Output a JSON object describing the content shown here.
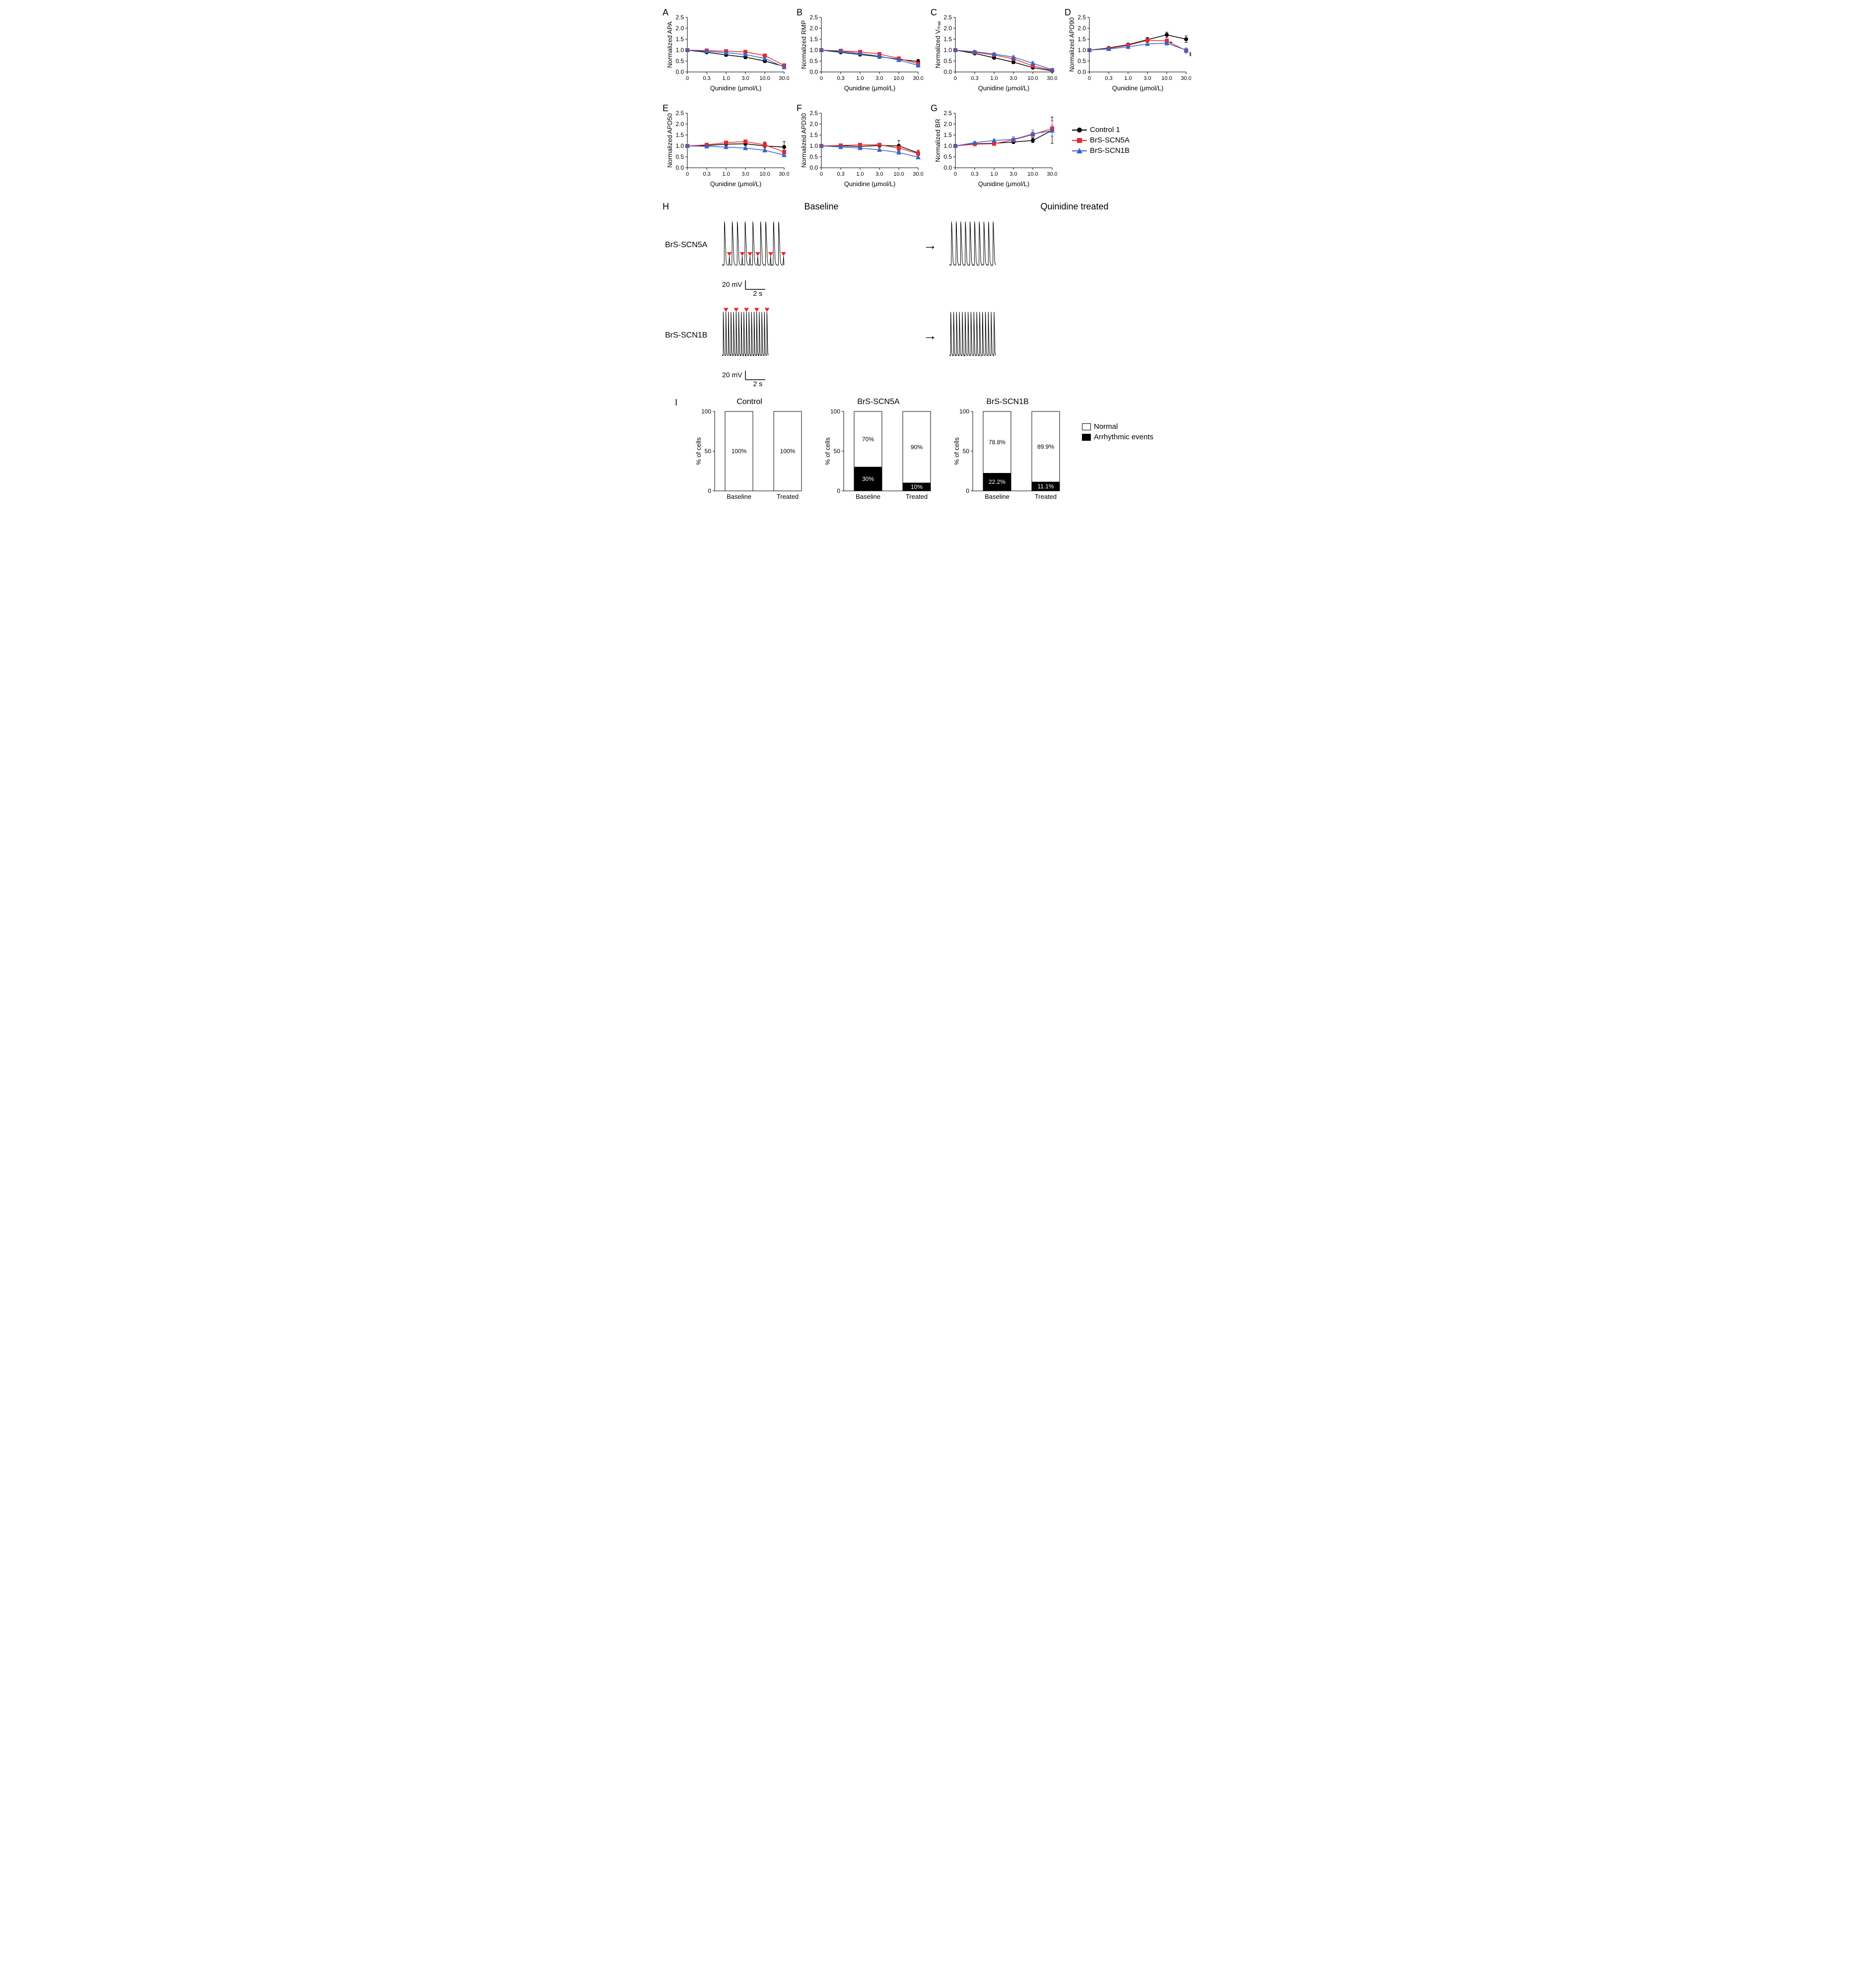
{
  "x_labels": [
    "0",
    "0.3",
    "1.0",
    "3.0",
    "10.0",
    "30.0"
  ],
  "x_axis_title": "Qunidine (μmol/L)",
  "ylim": [
    0,
    2.5
  ],
  "ytick_step": 0.5,
  "series_names": [
    "Control 1",
    "BrS-SCN5A",
    "BrS-SCN1B"
  ],
  "series_colors": [
    "#000000",
    "#e8282b",
    "#3366cc"
  ],
  "series_markers": [
    "circle",
    "square",
    "triangle"
  ],
  "panels": [
    {
      "id": "A",
      "ylabel": "Normalized APA",
      "series": [
        {
          "y": [
            1.0,
            0.9,
            0.78,
            0.68,
            0.5,
            0.25
          ],
          "err": [
            0,
            0.05,
            0.06,
            0.08,
            0.07,
            0.05
          ]
        },
        {
          "y": [
            1.0,
            0.98,
            0.95,
            0.92,
            0.75,
            0.3
          ],
          "err": [
            0,
            0.04,
            0.05,
            0.05,
            0.06,
            0.06
          ]
        },
        {
          "y": [
            1.0,
            0.95,
            0.88,
            0.8,
            0.62,
            0.22
          ],
          "err": [
            0,
            0.04,
            0.05,
            0.06,
            0.07,
            0.05
          ]
        }
      ]
    },
    {
      "id": "B",
      "ylabel": "Normalized RMP",
      "series": [
        {
          "y": [
            1.0,
            0.9,
            0.8,
            0.7,
            0.58,
            0.48
          ],
          "err": [
            0,
            0.05,
            0.07,
            0.08,
            0.09,
            0.1
          ]
        },
        {
          "y": [
            1.0,
            0.97,
            0.92,
            0.82,
            0.62,
            0.38
          ],
          "err": [
            0,
            0.03,
            0.04,
            0.05,
            0.07,
            0.08
          ]
        },
        {
          "y": [
            1.0,
            0.95,
            0.85,
            0.72,
            0.55,
            0.3
          ],
          "err": [
            0,
            0.04,
            0.05,
            0.06,
            0.08,
            0.08
          ]
        }
      ]
    },
    {
      "id": "C",
      "ylabel": "Normalized Vₘₐₓ",
      "series": [
        {
          "y": [
            1.0,
            0.85,
            0.65,
            0.45,
            0.2,
            0.05
          ],
          "err": [
            0,
            0.05,
            0.06,
            0.07,
            0.06,
            0.04
          ]
        },
        {
          "y": [
            1.0,
            0.9,
            0.78,
            0.6,
            0.28,
            0.08
          ],
          "err": [
            0,
            0.04,
            0.05,
            0.06,
            0.06,
            0.04
          ]
        },
        {
          "y": [
            1.0,
            0.93,
            0.82,
            0.68,
            0.4,
            0.1
          ],
          "err": [
            0,
            0.04,
            0.05,
            0.06,
            0.08,
            0.05
          ]
        }
      ]
    },
    {
      "id": "D",
      "ylabel": "Normalized APD90",
      "series": [
        {
          "y": [
            1.0,
            1.1,
            1.25,
            1.48,
            1.7,
            1.5
          ],
          "err": [
            0,
            0.05,
            0.06,
            0.1,
            0.12,
            0.15
          ]
        },
        {
          "y": [
            1.0,
            1.08,
            1.22,
            1.45,
            1.42,
            0.98
          ],
          "err": [
            0,
            0.04,
            0.05,
            0.08,
            0.1,
            0.12
          ]
        },
        {
          "y": [
            1.0,
            1.05,
            1.15,
            1.28,
            1.32,
            1.0
          ],
          "err": [
            0,
            0.04,
            0.05,
            0.07,
            0.09,
            0.1
          ]
        }
      ],
      "sig_markers": [
        {
          "x": 4,
          "y": 1.28
        },
        {
          "x": 5,
          "y": 0.8
        },
        {
          "x": 5,
          "y": 0.7
        }
      ]
    },
    {
      "id": "E",
      "ylabel": "Normalized APD50",
      "series": [
        {
          "y": [
            1.0,
            1.02,
            1.08,
            1.1,
            1.0,
            0.95
          ],
          "err": [
            0,
            0.05,
            0.07,
            0.08,
            0.18,
            0.25
          ]
        },
        {
          "y": [
            1.0,
            1.05,
            1.15,
            1.2,
            1.05,
            0.72
          ],
          "err": [
            0,
            0.04,
            0.05,
            0.06,
            0.1,
            0.1
          ]
        },
        {
          "y": [
            1.0,
            0.98,
            0.95,
            0.9,
            0.8,
            0.58
          ],
          "err": [
            0,
            0.04,
            0.05,
            0.06,
            0.08,
            0.08
          ]
        }
      ]
    },
    {
      "id": "F",
      "ylabel": "Normalized APD30",
      "series": [
        {
          "y": [
            1.0,
            1.0,
            0.98,
            1.02,
            1.0,
            0.68
          ],
          "err": [
            0,
            0.05,
            0.06,
            0.08,
            0.25,
            0.12
          ]
        },
        {
          "y": [
            1.0,
            1.02,
            1.05,
            1.05,
            0.9,
            0.65
          ],
          "err": [
            0,
            0.04,
            0.05,
            0.06,
            0.1,
            0.1
          ]
        },
        {
          "y": [
            1.0,
            0.95,
            0.9,
            0.82,
            0.7,
            0.48
          ],
          "err": [
            0,
            0.04,
            0.05,
            0.06,
            0.08,
            0.08
          ]
        }
      ]
    },
    {
      "id": "G",
      "ylabel": "Normalized BR",
      "series": [
        {
          "y": [
            1.0,
            1.1,
            1.12,
            1.18,
            1.25,
            1.72
          ],
          "err": [
            0,
            0.05,
            0.06,
            0.07,
            0.1,
            0.6
          ]
        },
        {
          "y": [
            1.0,
            1.08,
            1.1,
            1.28,
            1.52,
            1.8
          ],
          "err": [
            0,
            0.04,
            0.05,
            0.08,
            0.12,
            0.35
          ]
        },
        {
          "y": [
            1.0,
            1.15,
            1.25,
            1.3,
            1.55,
            1.7
          ],
          "err": [
            0,
            0.05,
            0.07,
            0.12,
            0.18,
            0.25
          ]
        }
      ]
    }
  ],
  "section_h": {
    "baseline_title": "Baseline",
    "treated_title": "Quinidine treated",
    "scale_v": "20 mV",
    "scale_h": "2 s",
    "rows": [
      {
        "label": "BrS-SCN5A",
        "dense": false
      },
      {
        "label": "BrS-SCN1B",
        "dense": true
      }
    ]
  },
  "section_i": {
    "ylabel": "% of cells",
    "x_cats": [
      "Baseline",
      "Treated"
    ],
    "legend": [
      "Normal",
      "Arrhythmic events"
    ],
    "charts": [
      {
        "title": "Control",
        "bars": [
          {
            "normal": 100,
            "arr": 0,
            "n_label": "100%",
            "a_label": ""
          },
          {
            "normal": 100,
            "arr": 0,
            "n_label": "100%",
            "a_label": ""
          }
        ]
      },
      {
        "title": "BrS-SCN5A",
        "bars": [
          {
            "normal": 70,
            "arr": 30,
            "n_label": "70%",
            "a_label": "30%"
          },
          {
            "normal": 90,
            "arr": 10,
            "n_label": "90%",
            "a_label": "10%"
          }
        ]
      },
      {
        "title": "BrS-SCN1B",
        "bars": [
          {
            "normal": 78.8,
            "arr": 22.2,
            "n_label": "78.8%",
            "a_label": "22.2%"
          },
          {
            "normal": 89.9,
            "arr": 11.1,
            "n_label": "89.9%",
            "a_label": "11.1%"
          }
        ]
      }
    ]
  }
}
